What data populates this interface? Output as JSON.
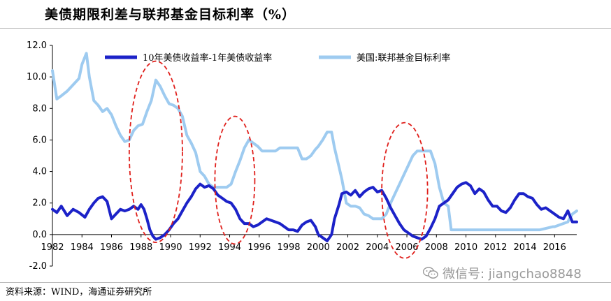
{
  "title": "美债期限利差与联邦基金目标利率（%）",
  "source": "资料来源：WIND，海通证券研究所",
  "watermark": "微信号: jiangchao8848",
  "colors": {
    "spread": "#1c22c8",
    "ffr": "#9ecbf0",
    "ellipse": "#e0201c",
    "axis": "#000000"
  },
  "chart_data": {
    "type": "line",
    "title": "美债期限利差与联邦基金目标利率（%）",
    "xlabel": "",
    "ylabel": "",
    "xlim": [
      1982,
      2017.5
    ],
    "ylim": [
      -2.0,
      12.0
    ],
    "y_ticks": [
      "12.0",
      "10.0",
      "8.0",
      "6.0",
      "4.0",
      "2.0",
      "0.0",
      "-2.0"
    ],
    "x_ticks": [
      "1982",
      "1984",
      "1986",
      "1988",
      "1990",
      "1992",
      "1994",
      "1996",
      "1998",
      "2000",
      "2002",
      "2004",
      "2006",
      "2008",
      "2010",
      "2012",
      "2014",
      "2016"
    ],
    "legend_placement": "top",
    "grid": false,
    "series": [
      {
        "name": "10年美债收益率-1年美债收益率",
        "color": "#1c22c8",
        "points": [
          [
            1982.0,
            1.6
          ],
          [
            1982.3,
            1.4
          ],
          [
            1982.6,
            1.8
          ],
          [
            1983.0,
            1.2
          ],
          [
            1983.4,
            1.6
          ],
          [
            1983.8,
            1.4
          ],
          [
            1984.2,
            1.1
          ],
          [
            1984.5,
            1.6
          ],
          [
            1984.8,
            2.0
          ],
          [
            1985.1,
            2.3
          ],
          [
            1985.4,
            2.4
          ],
          [
            1985.7,
            2.1
          ],
          [
            1986.0,
            1.0
          ],
          [
            1986.3,
            1.3
          ],
          [
            1986.6,
            1.6
          ],
          [
            1986.9,
            1.5
          ],
          [
            1987.2,
            1.6
          ],
          [
            1987.5,
            1.8
          ],
          [
            1987.8,
            1.6
          ],
          [
            1988.0,
            1.9
          ],
          [
            1988.2,
            1.6
          ],
          [
            1988.4,
            1.0
          ],
          [
            1988.6,
            0.3
          ],
          [
            1988.8,
            -0.1
          ],
          [
            1989.0,
            -0.3
          ],
          [
            1989.3,
            -0.2
          ],
          [
            1989.6,
            0.0
          ],
          [
            1989.9,
            0.3
          ],
          [
            1990.2,
            0.7
          ],
          [
            1990.5,
            1.0
          ],
          [
            1990.8,
            1.5
          ],
          [
            1991.1,
            2.0
          ],
          [
            1991.4,
            2.4
          ],
          [
            1991.7,
            2.9
          ],
          [
            1992.0,
            3.2
          ],
          [
            1992.3,
            3.0
          ],
          [
            1992.6,
            3.1
          ],
          [
            1992.9,
            2.9
          ],
          [
            1993.2,
            2.5
          ],
          [
            1993.5,
            2.3
          ],
          [
            1993.8,
            2.1
          ],
          [
            1994.1,
            2.0
          ],
          [
            1994.4,
            1.6
          ],
          [
            1994.7,
            1.0
          ],
          [
            1995.0,
            0.7
          ],
          [
            1995.3,
            0.7
          ],
          [
            1995.6,
            0.5
          ],
          [
            1995.9,
            0.6
          ],
          [
            1996.2,
            0.8
          ],
          [
            1996.5,
            1.0
          ],
          [
            1996.8,
            0.9
          ],
          [
            1997.1,
            0.8
          ],
          [
            1997.4,
            0.7
          ],
          [
            1997.7,
            0.5
          ],
          [
            1998.0,
            0.3
          ],
          [
            1998.3,
            0.3
          ],
          [
            1998.6,
            0.2
          ],
          [
            1998.9,
            0.6
          ],
          [
            1999.2,
            0.8
          ],
          [
            1999.5,
            0.9
          ],
          [
            1999.8,
            0.5
          ],
          [
            2000.0,
            0.0
          ],
          [
            2000.3,
            -0.2
          ],
          [
            2000.6,
            -0.4
          ],
          [
            2000.9,
            0.0
          ],
          [
            2001.1,
            1.0
          ],
          [
            2001.4,
            1.9
          ],
          [
            2001.6,
            2.6
          ],
          [
            2001.9,
            2.7
          ],
          [
            2002.2,
            2.5
          ],
          [
            2002.5,
            2.8
          ],
          [
            2002.8,
            2.4
          ],
          [
            2003.1,
            2.7
          ],
          [
            2003.4,
            2.9
          ],
          [
            2003.7,
            3.0
          ],
          [
            2004.0,
            2.7
          ],
          [
            2004.3,
            2.8
          ],
          [
            2004.6,
            2.3
          ],
          [
            2004.9,
            1.7
          ],
          [
            2005.2,
            1.2
          ],
          [
            2005.5,
            0.7
          ],
          [
            2005.8,
            0.3
          ],
          [
            2006.1,
            0.1
          ],
          [
            2006.4,
            -0.1
          ],
          [
            2006.7,
            -0.2
          ],
          [
            2007.0,
            -0.3
          ],
          [
            2007.3,
            -0.1
          ],
          [
            2007.6,
            0.4
          ],
          [
            2007.9,
            1.0
          ],
          [
            2008.2,
            1.8
          ],
          [
            2008.5,
            2.0
          ],
          [
            2008.8,
            2.2
          ],
          [
            2009.1,
            2.6
          ],
          [
            2009.4,
            3.0
          ],
          [
            2009.7,
            3.2
          ],
          [
            2010.0,
            3.3
          ],
          [
            2010.3,
            3.1
          ],
          [
            2010.6,
            2.6
          ],
          [
            2010.9,
            2.9
          ],
          [
            2011.2,
            2.7
          ],
          [
            2011.5,
            2.2
          ],
          [
            2011.8,
            1.8
          ],
          [
            2012.1,
            1.8
          ],
          [
            2012.4,
            1.5
          ],
          [
            2012.7,
            1.4
          ],
          [
            2013.0,
            1.7
          ],
          [
            2013.3,
            2.2
          ],
          [
            2013.6,
            2.6
          ],
          [
            2013.9,
            2.6
          ],
          [
            2014.2,
            2.4
          ],
          [
            2014.5,
            2.3
          ],
          [
            2014.8,
            1.9
          ],
          [
            2015.1,
            1.6
          ],
          [
            2015.4,
            1.7
          ],
          [
            2015.7,
            1.5
          ],
          [
            2016.0,
            1.3
          ],
          [
            2016.3,
            1.1
          ],
          [
            2016.6,
            1.0
          ],
          [
            2016.9,
            1.5
          ],
          [
            2017.2,
            0.8
          ],
          [
            2017.5,
            0.8
          ]
        ]
      },
      {
        "name": "美国:联邦基金目标利率",
        "color": "#9ecbf0",
        "points": [
          [
            1982.0,
            10.4
          ],
          [
            1982.3,
            8.6
          ],
          [
            1982.6,
            8.8
          ],
          [
            1983.0,
            9.1
          ],
          [
            1983.4,
            9.5
          ],
          [
            1983.8,
            9.9
          ],
          [
            1984.0,
            10.8
          ],
          [
            1984.3,
            11.5
          ],
          [
            1984.5,
            10.0
          ],
          [
            1984.8,
            8.5
          ],
          [
            1985.1,
            8.2
          ],
          [
            1985.4,
            7.8
          ],
          [
            1985.7,
            8.0
          ],
          [
            1986.0,
            7.6
          ],
          [
            1986.3,
            6.9
          ],
          [
            1986.6,
            6.3
          ],
          [
            1986.9,
            5.9
          ],
          [
            1987.2,
            6.0
          ],
          [
            1987.5,
            6.6
          ],
          [
            1987.8,
            6.9
          ],
          [
            1988.1,
            7.0
          ],
          [
            1988.4,
            7.8
          ],
          [
            1988.7,
            8.5
          ],
          [
            1989.0,
            9.8
          ],
          [
            1989.3,
            9.4
          ],
          [
            1989.6,
            8.8
          ],
          [
            1989.9,
            8.3
          ],
          [
            1990.2,
            8.2
          ],
          [
            1990.5,
            8.0
          ],
          [
            1990.8,
            7.5
          ],
          [
            1991.1,
            6.3
          ],
          [
            1991.4,
            5.8
          ],
          [
            1991.7,
            5.2
          ],
          [
            1992.0,
            4.0
          ],
          [
            1992.3,
            3.7
          ],
          [
            1992.6,
            3.2
          ],
          [
            1992.9,
            3.0
          ],
          [
            1993.2,
            3.0
          ],
          [
            1993.5,
            3.0
          ],
          [
            1993.8,
            3.0
          ],
          [
            1994.1,
            3.2
          ],
          [
            1994.4,
            4.0
          ],
          [
            1994.7,
            4.7
          ],
          [
            1995.0,
            5.5
          ],
          [
            1995.3,
            6.0
          ],
          [
            1995.6,
            5.8
          ],
          [
            1995.9,
            5.6
          ],
          [
            1996.2,
            5.3
          ],
          [
            1996.5,
            5.3
          ],
          [
            1996.8,
            5.3
          ],
          [
            1997.1,
            5.3
          ],
          [
            1997.4,
            5.5
          ],
          [
            1997.7,
            5.5
          ],
          [
            1998.0,
            5.5
          ],
          [
            1998.3,
            5.5
          ],
          [
            1998.6,
            5.5
          ],
          [
            1998.9,
            4.8
          ],
          [
            1999.2,
            4.8
          ],
          [
            1999.5,
            5.0
          ],
          [
            1999.8,
            5.4
          ],
          [
            2000.0,
            5.6
          ],
          [
            2000.3,
            6.0
          ],
          [
            2000.6,
            6.5
          ],
          [
            2000.9,
            6.5
          ],
          [
            2001.1,
            5.5
          ],
          [
            2001.4,
            4.3
          ],
          [
            2001.6,
            3.5
          ],
          [
            2001.9,
            2.0
          ],
          [
            2002.2,
            1.8
          ],
          [
            2002.5,
            1.8
          ],
          [
            2002.8,
            1.7
          ],
          [
            2003.1,
            1.3
          ],
          [
            2003.4,
            1.2
          ],
          [
            2003.7,
            1.0
          ],
          [
            2004.0,
            1.0
          ],
          [
            2004.3,
            1.0
          ],
          [
            2004.6,
            1.3
          ],
          [
            2004.9,
            2.0
          ],
          [
            2005.2,
            2.6
          ],
          [
            2005.5,
            3.2
          ],
          [
            2005.8,
            3.8
          ],
          [
            2006.1,
            4.4
          ],
          [
            2006.4,
            5.0
          ],
          [
            2006.7,
            5.3
          ],
          [
            2007.0,
            5.3
          ],
          [
            2007.3,
            5.3
          ],
          [
            2007.6,
            5.3
          ],
          [
            2007.9,
            4.5
          ],
          [
            2008.2,
            3.0
          ],
          [
            2008.5,
            2.0
          ],
          [
            2008.8,
            1.8
          ],
          [
            2009.0,
            0.3
          ],
          [
            2009.5,
            0.3
          ],
          [
            2010.0,
            0.3
          ],
          [
            2011.0,
            0.3
          ],
          [
            2012.0,
            0.3
          ],
          [
            2013.0,
            0.3
          ],
          [
            2014.0,
            0.3
          ],
          [
            2015.0,
            0.3
          ],
          [
            2015.9,
            0.5
          ],
          [
            2016.0,
            0.5
          ],
          [
            2016.9,
            0.8
          ],
          [
            2017.0,
            1.0
          ],
          [
            2017.2,
            1.3
          ],
          [
            2017.5,
            1.5
          ]
        ]
      }
    ],
    "annotations": [
      {
        "type": "ellipse",
        "label": "",
        "x_range": [
          1987.2,
          1990.8
        ],
        "y_range": [
          -0.5,
          11.0
        ]
      },
      {
        "type": "ellipse",
        "label": "",
        "x_range": [
          1993.0,
          1995.7
        ],
        "y_range": [
          -0.6,
          7.5
        ]
      },
      {
        "type": "ellipse",
        "label": "",
        "x_range": [
          2004.3,
          2007.4
        ],
        "y_range": [
          -1.5,
          7.1
        ]
      }
    ]
  }
}
